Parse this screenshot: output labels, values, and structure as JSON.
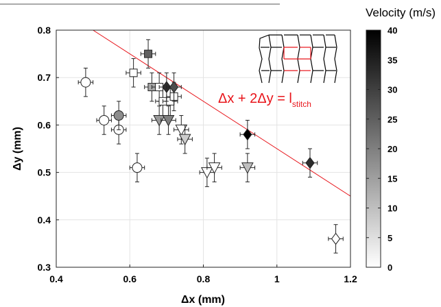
{
  "chart_data": {
    "type": "scatter",
    "xlabel": "Δx (mm)",
    "ylabel": "Δy (mm)",
    "xlim": [
      0.4,
      1.2
    ],
    "ylim": [
      0.3,
      0.8
    ],
    "xticks": [
      "0.4",
      "0.6",
      "0.8",
      "1",
      "1.2"
    ],
    "yticks": [
      "0.3",
      "0.4",
      "0.5",
      "0.6",
      "0.7",
      "0.8"
    ],
    "grid": true,
    "colorbar": {
      "title": "Velocity (m/s)",
      "range": [
        0,
        40
      ],
      "ticks": [
        "0",
        "5",
        "10",
        "15",
        "20",
        "25",
        "30",
        "35",
        "40"
      ],
      "colormap": "gray-reversed",
      "low_color": "#ffffff",
      "high_color": "#000000"
    },
    "annotation": {
      "text": "Δx + 2Δy = l",
      "subscript": "stitch",
      "color": "#e8141a"
    },
    "line": {
      "color": "#e8141a",
      "x": [
        0.5,
        1.2
      ],
      "y": [
        0.8,
        0.45
      ]
    },
    "xerr": 0.02,
    "yerr": 0.03,
    "points": [
      {
        "marker": "circle",
        "x": 0.48,
        "y": 0.69,
        "v": 0
      },
      {
        "marker": "circle",
        "x": 0.53,
        "y": 0.61,
        "v": 0
      },
      {
        "marker": "circle",
        "x": 0.57,
        "y": 0.59,
        "v": 0
      },
      {
        "marker": "circle",
        "x": 0.57,
        "y": 0.62,
        "v": 18
      },
      {
        "marker": "circle",
        "x": 0.62,
        "y": 0.51,
        "v": 0
      },
      {
        "marker": "square",
        "x": 0.61,
        "y": 0.71,
        "v": 0
      },
      {
        "marker": "square",
        "x": 0.65,
        "y": 0.75,
        "v": 25
      },
      {
        "marker": "square",
        "x": 0.66,
        "y": 0.68,
        "v": 14
      },
      {
        "marker": "square",
        "x": 0.68,
        "y": 0.68,
        "v": 0
      },
      {
        "marker": "square",
        "x": 0.69,
        "y": 0.65,
        "v": 0
      },
      {
        "marker": "square",
        "x": 0.71,
        "y": 0.65,
        "v": 0
      },
      {
        "marker": "square",
        "x": 0.72,
        "y": 0.66,
        "v": 0
      },
      {
        "marker": "triangle",
        "x": 0.68,
        "y": 0.61,
        "v": 16
      },
      {
        "marker": "triangle",
        "x": 0.705,
        "y": 0.61,
        "v": 20
      },
      {
        "marker": "triangle",
        "x": 0.74,
        "y": 0.59,
        "v": 0
      },
      {
        "marker": "triangle",
        "x": 0.75,
        "y": 0.57,
        "v": 8
      },
      {
        "marker": "triangle",
        "x": 0.81,
        "y": 0.5,
        "v": 0
      },
      {
        "marker": "triangle",
        "x": 0.83,
        "y": 0.51,
        "v": 0
      },
      {
        "marker": "triangle",
        "x": 0.92,
        "y": 0.51,
        "v": 10
      },
      {
        "marker": "diamond",
        "x": 0.7,
        "y": 0.68,
        "v": 33
      },
      {
        "marker": "diamond",
        "x": 0.72,
        "y": 0.68,
        "v": 28
      },
      {
        "marker": "diamond",
        "x": 0.92,
        "y": 0.58,
        "v": 40
      },
      {
        "marker": "diamond",
        "x": 1.09,
        "y": 0.52,
        "v": 33
      },
      {
        "marker": "diamond",
        "x": 1.16,
        "y": 0.36,
        "v": 0
      }
    ]
  }
}
